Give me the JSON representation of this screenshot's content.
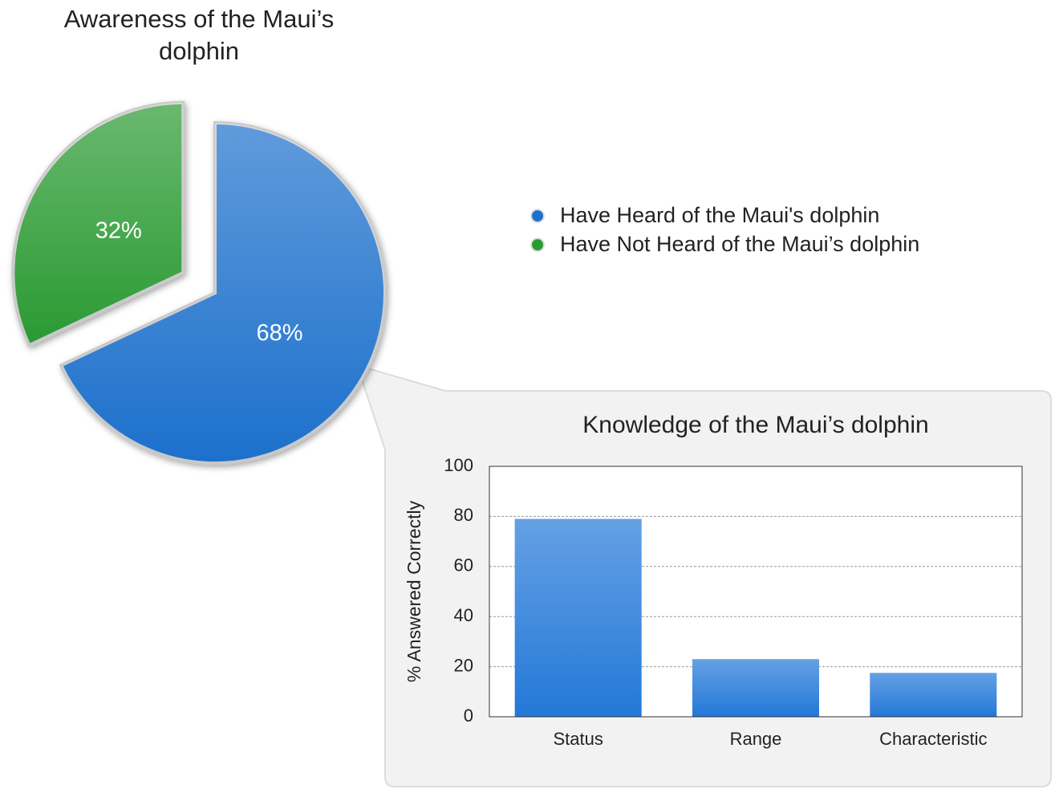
{
  "chart_data": [
    {
      "type": "pie",
      "title": "Awareness of the Maui’s dolphin",
      "labels": [
        "Have Heard of the Maui's dolphin",
        "Have Not Heard of the Maui’s dolphin"
      ],
      "values": [
        68,
        32
      ],
      "value_labels": [
        "68%",
        "32%"
      ],
      "colors": [
        "#1f6fcc",
        "#2a9a33"
      ],
      "legend": "right"
    },
    {
      "type": "bar",
      "title": "Knowledge of the Maui’s dolphin",
      "ylabel": "% Answered Correctly",
      "categories": [
        "Status",
        "Range",
        "Characteristic"
      ],
      "values": [
        79,
        23,
        17.5
      ],
      "color": "#2378d8",
      "ylim": [
        0,
        100
      ],
      "yticks": [
        0,
        20,
        40,
        60,
        80,
        100
      ],
      "grid": true
    }
  ]
}
